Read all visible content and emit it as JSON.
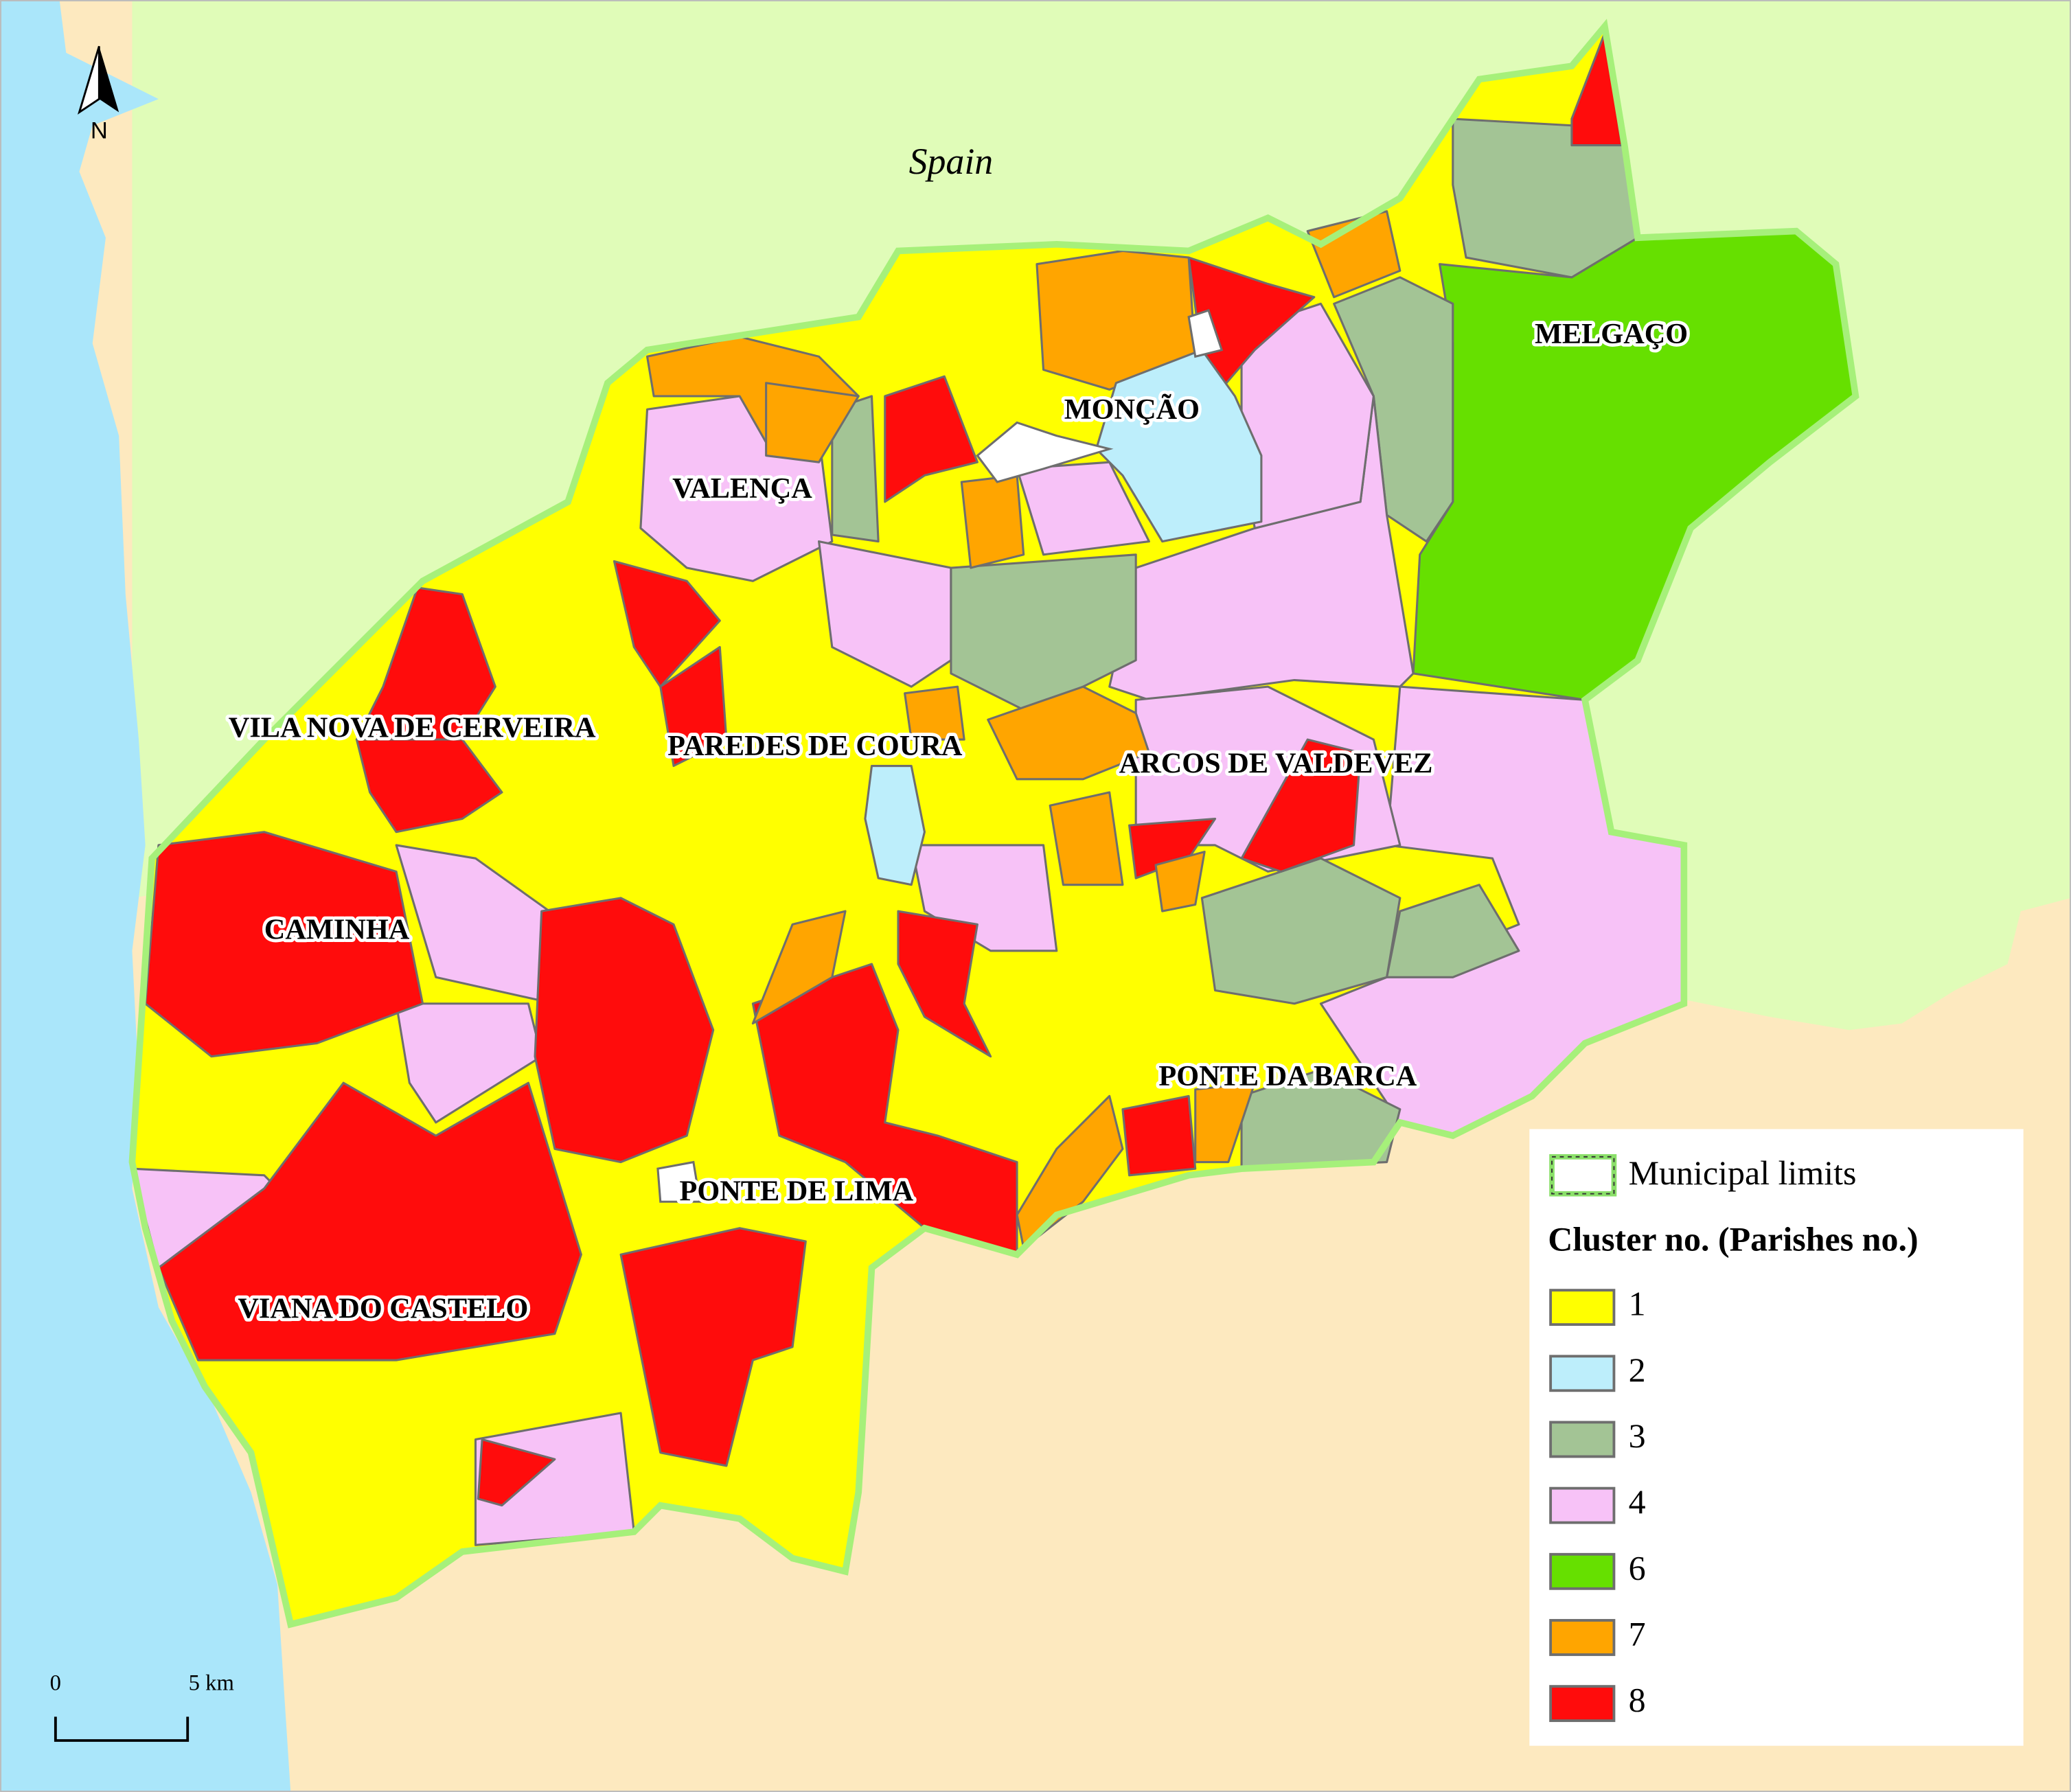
{
  "map": {
    "country_label": "Spain",
    "north": "N",
    "scale_bar": {
      "start": "0",
      "end": "5 km"
    },
    "municipalities": [
      "MELGAÇO",
      "MONÇÃO",
      "VALENÇA",
      "VILA NOVA DE CERVEIRA",
      "PAREDES DE COURA",
      "ARCOS DE VALDEVEZ",
      "CAMINHA",
      "PONTE DA BARCA",
      "PONTE DE LIMA",
      "VIANA DO CASTELO"
    ],
    "legend": {
      "limits": "Municipal limits",
      "title": "Cluster no. (Parishes no.)",
      "items": [
        {
          "label": "1",
          "color": "#ffff00"
        },
        {
          "label": "2",
          "color": "#bdeefb"
        },
        {
          "label": "3",
          "color": "#a3c495"
        },
        {
          "label": "4",
          "color": "#f7c2f7"
        },
        {
          "label": "6",
          "color": "#66e000"
        },
        {
          "label": "7",
          "color": "#ffa500"
        },
        {
          "label": "8",
          "color": "#ff0c0c"
        }
      ]
    }
  }
}
